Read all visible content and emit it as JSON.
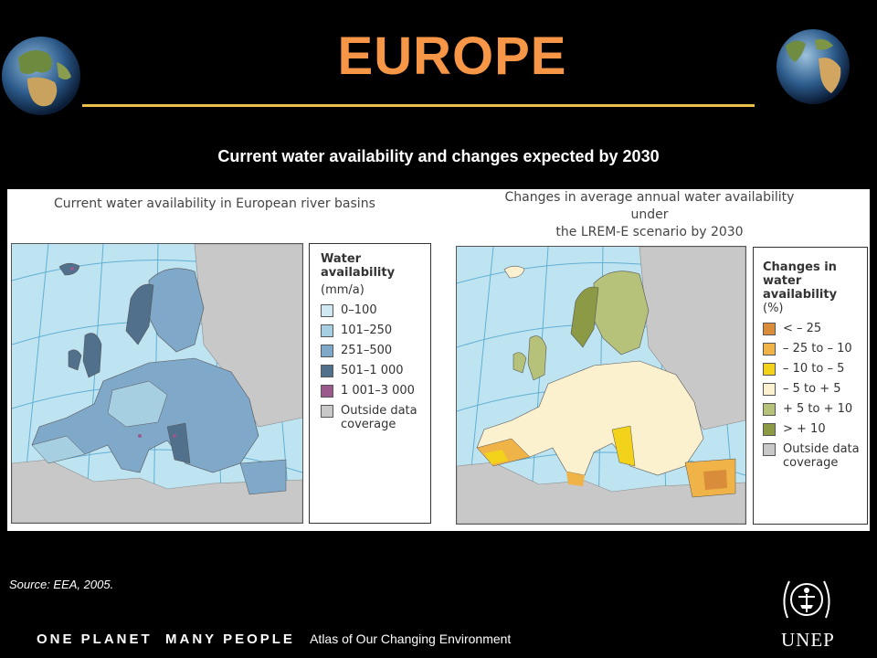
{
  "header": {
    "title": "EUROPE",
    "subtitle": "Current water availability and changes expected by 2030"
  },
  "left_map": {
    "heading": "Current water availability in European river basins",
    "legend": {
      "title": "Water availability",
      "unit": "(mm/a)",
      "items": [
        {
          "label": "0–100",
          "color": "#cfe8f2"
        },
        {
          "label": "101–250",
          "color": "#a7cfe2"
        },
        {
          "label": "251–500",
          "color": "#7fa8c9"
        },
        {
          "label": "501–1 000",
          "color": "#51708c"
        },
        {
          "label": "1 001–3 000",
          "color": "#9c5a8c"
        },
        {
          "label": "Outside data coverage",
          "color": "#c8c8c8"
        }
      ]
    }
  },
  "right_map": {
    "heading_line1": "Changes in average annual water availability under",
    "heading_line2": "the LREM-E scenario by 2030",
    "legend": {
      "title": "Changes in water availability",
      "unit": "(%)",
      "items": [
        {
          "label": "< – 25",
          "color": "#d98c3a"
        },
        {
          "label": "– 25 to – 10",
          "color": "#f0b347"
        },
        {
          "label": "– 10 to – 5",
          "color": "#f2d21b"
        },
        {
          "label": "– 5 to + 5",
          "color": "#fbf1cf"
        },
        {
          "label": "+ 5 to + 10",
          "color": "#b6c27a"
        },
        {
          "label": "> + 10",
          "color": "#8c9a45"
        },
        {
          "label": "Outside data coverage",
          "color": "#c8c8c8"
        }
      ]
    }
  },
  "source": "Source: EEA, 2005.",
  "footer": {
    "bold": "ONE PLANET  MANY PEOPLE",
    "light": "Atlas of Our Changing Environment",
    "logo_text": "UNEP"
  }
}
